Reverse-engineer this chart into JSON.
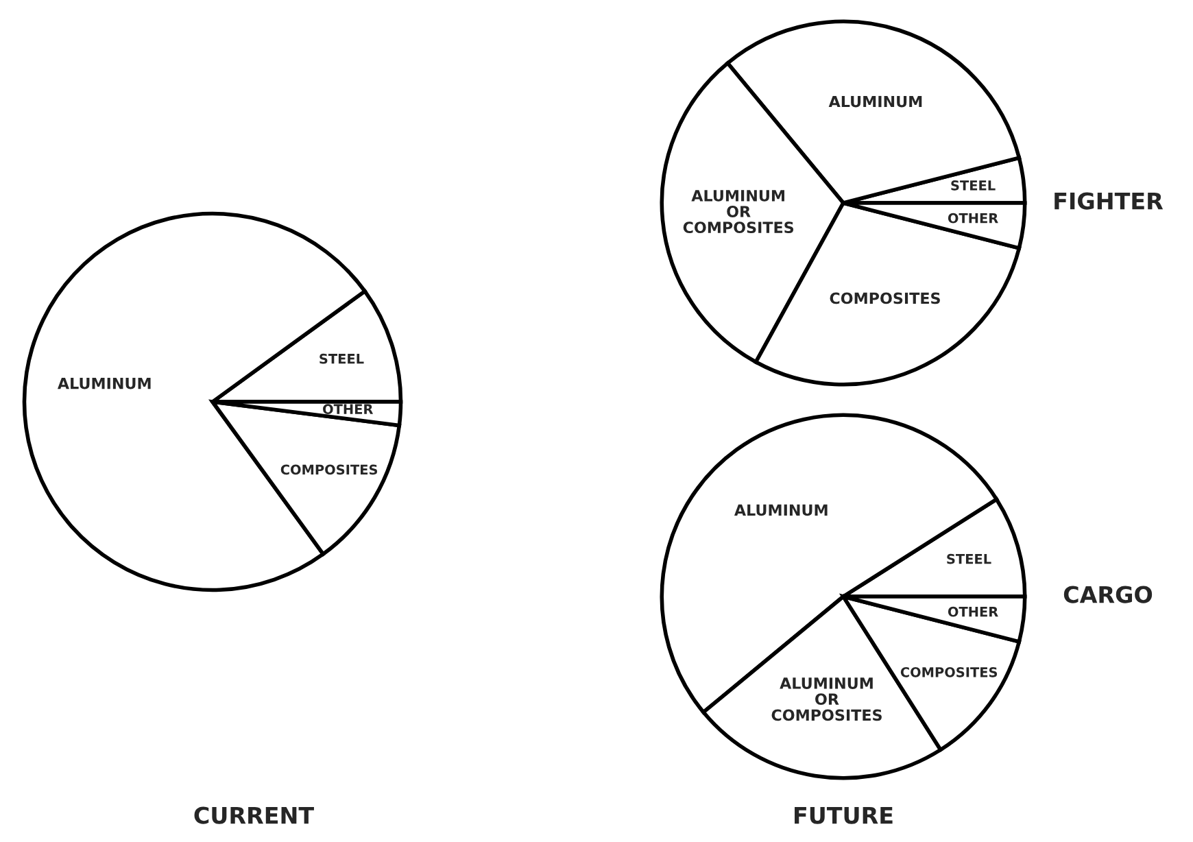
{
  "chart_data": [
    {
      "type": "pie",
      "title": "CURRENT",
      "categories": [
        "STEEL",
        "ALUMINUM",
        "COMPOSITES",
        "OTHER"
      ],
      "values": [
        10,
        75,
        13,
        2
      ],
      "colors": [
        "#ffffff",
        "#ffffff",
        "#ffffff",
        "#ffffff"
      ]
    },
    {
      "type": "pie",
      "title": "FIGHTER",
      "categories": [
        "STEEL",
        "ALUMINUM",
        "ALUMINUM\nOR\nCOMPOSITES",
        "COMPOSITES",
        "OTHER"
      ],
      "values": [
        4,
        32,
        31,
        29,
        4
      ],
      "colors": [
        "#ffffff",
        "#ffffff",
        "#ffffff",
        "#ffffff",
        "#ffffff"
      ]
    },
    {
      "type": "pie",
      "title": "CARGO",
      "annotations": [
        "FUTURE"
      ],
      "categories": [
        "STEEL",
        "ALUMINUM",
        "ALUMINUM\nOR\nCOMPOSITES",
        "COMPOSITES",
        "OTHER"
      ],
      "values": [
        9,
        52,
        23,
        12,
        4
      ],
      "colors": [
        "#ffffff",
        "#ffffff",
        "#ffffff",
        "#ffffff",
        "#ffffff"
      ]
    }
  ]
}
